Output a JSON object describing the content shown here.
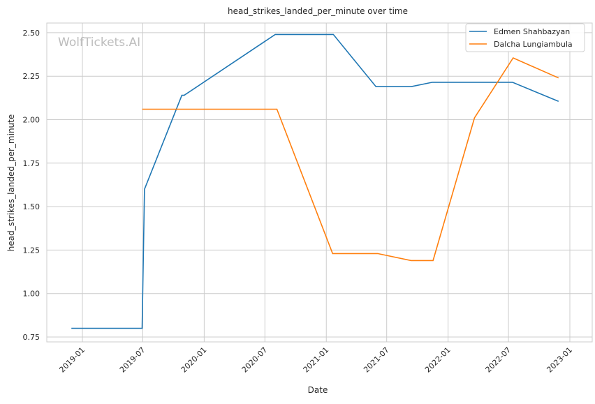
{
  "chart_data": {
    "type": "line",
    "title": "head_strikes_landed_per_minute over time",
    "xlabel": "Date",
    "ylabel": "head_strikes_landed_per_minute",
    "watermark": "WolfTickets.AI",
    "xlim": [
      "2018-10-10",
      "2023-01-20"
    ],
    "ylim": [
      0.72,
      2.58
    ],
    "x_ticks": [
      "2019-01",
      "2019-07",
      "2020-01",
      "2020-07",
      "2021-01",
      "2021-07",
      "2022-01",
      "2022-07",
      "2023-01"
    ],
    "y_ticks": [
      "0.75",
      "1.00",
      "1.25",
      "1.50",
      "1.75",
      "2.00",
      "2.25",
      "2.50"
    ],
    "grid": true,
    "legend_position": "top-right",
    "series": [
      {
        "name": "Edmen Shahbazyan",
        "color": "#1f77b4",
        "points": [
          [
            "2018-11-29",
            0.8
          ],
          [
            "2019-06-29",
            0.8
          ],
          [
            "2019-07-06",
            1.6
          ],
          [
            "2019-10-26",
            2.14
          ],
          [
            "2019-11-02",
            2.14
          ],
          [
            "2020-08-01",
            2.49
          ],
          [
            "2021-01-22",
            2.49
          ],
          [
            "2021-05-30",
            2.19
          ],
          [
            "2021-09-12",
            2.19
          ],
          [
            "2021-11-15",
            2.215
          ],
          [
            "2022-07-13",
            2.215
          ],
          [
            "2022-11-28",
            2.105
          ]
        ]
      },
      {
        "name": "Dalcha Lungiambula",
        "color": "#ff7f0e",
        "points": [
          [
            "2019-06-29",
            2.06
          ],
          [
            "2020-08-06",
            2.06
          ],
          [
            "2021-01-20",
            1.23
          ],
          [
            "2021-06-04",
            1.23
          ],
          [
            "2021-09-12",
            1.19
          ],
          [
            "2021-11-17",
            1.19
          ],
          [
            "2022-03-21",
            2.01
          ],
          [
            "2022-07-15",
            2.355
          ],
          [
            "2022-11-28",
            2.24
          ]
        ]
      }
    ]
  }
}
